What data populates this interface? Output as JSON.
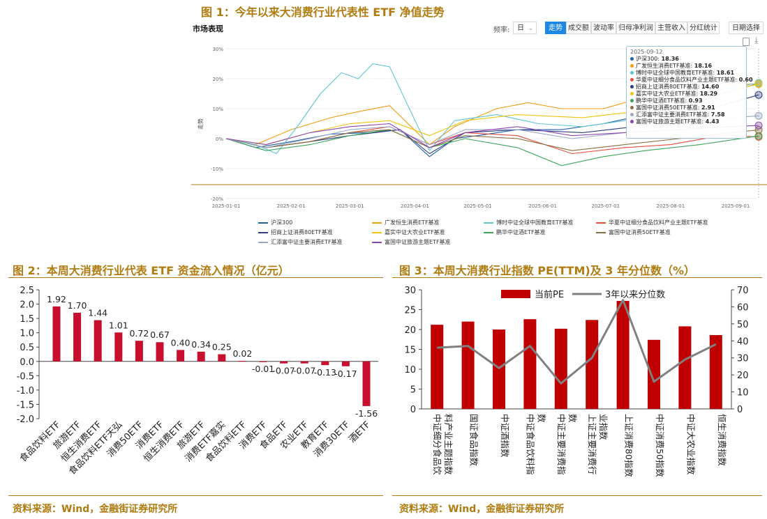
{
  "figure1": {
    "title": "图 1：今年以来大消费行业代表性 ETF 净值走势",
    "panel_title": "市场表现",
    "freq_label": "频率:",
    "freq_value": "日",
    "tabs": [
      "走势",
      "成交额",
      "波动率",
      "归母净利润",
      "主营收入",
      "分红统计"
    ],
    "active_tab": "走势",
    "date_button": "日期选择",
    "ylabel": "走势",
    "tooltip_date": "2025-09-12",
    "chart_data": {
      "type": "line",
      "x_ticks": [
        "2025-01-01",
        "2025-02-01",
        "2025-03-01",
        "2025-04-01",
        "2025-05-01",
        "2025-06-01",
        "2025-07-01",
        "2025-08-01",
        "2025-09-01"
      ],
      "y_ticks": [
        "30%",
        "20%",
        "10%",
        "0%",
        "-10%",
        "-20%"
      ],
      "ylim": [
        -20,
        30
      ],
      "x_start": "2025-01-01",
      "x_end": "2025-09-12",
      "series": [
        {
          "name": "沪深300",
          "color": "#1f5fa8",
          "tooltip": "18.36",
          "points": [
            [
              "2025-01-01",
              0
            ],
            [
              "2025-01-15",
              -3
            ],
            [
              "2025-02-01",
              -1
            ],
            [
              "2025-02-20",
              1.5
            ],
            [
              "2025-03-10",
              2
            ],
            [
              "2025-03-25",
              3
            ],
            [
              "2025-04-08",
              -6
            ],
            [
              "2025-04-20",
              0
            ],
            [
              "2025-05-01",
              1
            ],
            [
              "2025-05-20",
              3
            ],
            [
              "2025-06-10",
              3
            ],
            [
              "2025-06-30",
              5
            ],
            [
              "2025-07-20",
              8
            ],
            [
              "2025-08-10",
              11
            ],
            [
              "2025-08-25",
              15
            ],
            [
              "2025-09-12",
              18.4
            ]
          ]
        },
        {
          "name": "广发恒生消费ETF基准",
          "color": "#f39c12",
          "tooltip": "18.16",
          "points": [
            [
              "2025-01-01",
              0
            ],
            [
              "2025-01-15",
              -2
            ],
            [
              "2025-02-01",
              3
            ],
            [
              "2025-02-20",
              7
            ],
            [
              "2025-03-05",
              9
            ],
            [
              "2025-03-20",
              11
            ],
            [
              "2025-04-08",
              -2
            ],
            [
              "2025-04-20",
              4
            ],
            [
              "2025-05-10",
              10
            ],
            [
              "2025-05-25",
              12
            ],
            [
              "2025-06-10",
              10
            ],
            [
              "2025-06-30",
              10
            ],
            [
              "2025-07-20",
              14
            ],
            [
              "2025-08-10",
              16
            ],
            [
              "2025-08-25",
              18
            ],
            [
              "2025-09-12",
              18.2
            ]
          ]
        },
        {
          "name": "博时中证全球中国教育ETF基准",
          "color": "#5ec5d6",
          "tooltip": "18.61",
          "points": [
            [
              "2025-01-01",
              0
            ],
            [
              "2025-01-15",
              -2
            ],
            [
              "2025-01-25",
              -5
            ],
            [
              "2025-02-05",
              5
            ],
            [
              "2025-02-15",
              15
            ],
            [
              "2025-02-25",
              22
            ],
            [
              "2025-03-05",
              20
            ],
            [
              "2025-03-12",
              25
            ],
            [
              "2025-03-20",
              24
            ],
            [
              "2025-03-28",
              12
            ],
            [
              "2025-04-08",
              -4
            ],
            [
              "2025-04-20",
              6
            ],
            [
              "2025-05-10",
              8
            ],
            [
              "2025-05-30",
              5
            ],
            [
              "2025-06-20",
              4
            ],
            [
              "2025-07-10",
              6
            ],
            [
              "2025-07-30",
              12
            ],
            [
              "2025-08-15",
              15
            ],
            [
              "2025-09-12",
              18.6
            ]
          ]
        },
        {
          "name": "华夏中证细分食品饮料产业主题ETF基准",
          "color": "#e74c3c",
          "tooltip": "0.60",
          "points": [
            [
              "2025-01-01",
              0
            ],
            [
              "2025-01-20",
              -3
            ],
            [
              "2025-02-10",
              -1
            ],
            [
              "2025-03-01",
              2
            ],
            [
              "2025-03-20",
              4
            ],
            [
              "2025-04-08",
              -2
            ],
            [
              "2025-04-25",
              2
            ],
            [
              "2025-05-20",
              1
            ],
            [
              "2025-06-15",
              -5
            ],
            [
              "2025-07-10",
              -3
            ],
            [
              "2025-08-01",
              -2
            ],
            [
              "2025-08-25",
              1
            ],
            [
              "2025-09-12",
              0.6
            ]
          ]
        },
        {
          "name": "招商上证消费80ETF基准",
          "color": "#2c3e80",
          "tooltip": "14.60",
          "points": [
            [
              "2025-01-01",
              0
            ],
            [
              "2025-01-20",
              -3
            ],
            [
              "2025-02-10",
              -1
            ],
            [
              "2025-03-01",
              1
            ],
            [
              "2025-03-25",
              3
            ],
            [
              "2025-04-08",
              -5
            ],
            [
              "2025-04-25",
              2
            ],
            [
              "2025-05-20",
              3
            ],
            [
              "2025-06-20",
              2
            ],
            [
              "2025-07-15",
              4
            ],
            [
              "2025-08-10",
              8
            ],
            [
              "2025-08-30",
              12
            ],
            [
              "2025-09-12",
              14.6
            ]
          ]
        },
        {
          "name": "嘉实中证大农业ETF基准",
          "color": "#f1c40f",
          "tooltip": "18.29",
          "points": [
            [
              "2025-01-01",
              0
            ],
            [
              "2025-01-20",
              -2
            ],
            [
              "2025-02-10",
              2
            ],
            [
              "2025-03-01",
              5
            ],
            [
              "2025-03-20",
              6
            ],
            [
              "2025-04-08",
              1
            ],
            [
              "2025-04-25",
              6
            ],
            [
              "2025-05-20",
              8
            ],
            [
              "2025-06-20",
              7
            ],
            [
              "2025-07-15",
              9
            ],
            [
              "2025-08-10",
              13
            ],
            [
              "2025-08-30",
              16
            ],
            [
              "2025-09-12",
              18.3
            ]
          ]
        },
        {
          "name": "鹏华中证酒ETF基准",
          "color": "#3aa65a",
          "tooltip": "0.93",
          "points": [
            [
              "2025-01-01",
              0
            ],
            [
              "2025-01-20",
              -4
            ],
            [
              "2025-02-10",
              -2
            ],
            [
              "2025-03-01",
              1
            ],
            [
              "2025-03-20",
              3
            ],
            [
              "2025-04-08",
              -3
            ],
            [
              "2025-04-25",
              0
            ],
            [
              "2025-05-20",
              -3
            ],
            [
              "2025-06-10",
              -9
            ],
            [
              "2025-06-30",
              -6
            ],
            [
              "2025-07-20",
              -4
            ],
            [
              "2025-08-15",
              -2
            ],
            [
              "2025-09-12",
              0.9
            ]
          ]
        },
        {
          "name": "富国中证消费50ETF基准",
          "color": "#8a6d3b",
          "tooltip": "2.91",
          "points": [
            [
              "2025-01-01",
              0
            ],
            [
              "2025-01-20",
              -3
            ],
            [
              "2025-02-10",
              -1
            ],
            [
              "2025-03-01",
              2
            ],
            [
              "2025-03-20",
              3
            ],
            [
              "2025-04-08",
              -3
            ],
            [
              "2025-04-25",
              1
            ],
            [
              "2025-05-20",
              0
            ],
            [
              "2025-06-15",
              -4
            ],
            [
              "2025-07-10",
              -2
            ],
            [
              "2025-08-05",
              0
            ],
            [
              "2025-08-30",
              2
            ],
            [
              "2025-09-12",
              2.9
            ]
          ]
        },
        {
          "name": "汇添富中证主要消费ETF基准",
          "color": "#9aa7c7",
          "tooltip": "7.58",
          "points": [
            [
              "2025-01-01",
              0
            ],
            [
              "2025-01-20",
              -3
            ],
            [
              "2025-02-10",
              0
            ],
            [
              "2025-03-01",
              3
            ],
            [
              "2025-03-20",
              4
            ],
            [
              "2025-04-08",
              -2
            ],
            [
              "2025-04-25",
              3
            ],
            [
              "2025-05-20",
              3
            ],
            [
              "2025-06-15",
              0
            ],
            [
              "2025-07-10",
              2
            ],
            [
              "2025-08-05",
              5
            ],
            [
              "2025-08-30",
              7
            ],
            [
              "2025-09-12",
              7.6
            ]
          ]
        },
        {
          "name": "富国中证旅游主题ETF基准",
          "color": "#8e44ad",
          "tooltip": "4.43",
          "points": [
            [
              "2025-01-01",
              0
            ],
            [
              "2025-01-20",
              -2
            ],
            [
              "2025-02-10",
              2
            ],
            [
              "2025-03-01",
              4
            ],
            [
              "2025-03-20",
              5
            ],
            [
              "2025-04-08",
              -3
            ],
            [
              "2025-04-25",
              2
            ],
            [
              "2025-05-20",
              4
            ],
            [
              "2025-06-15",
              1
            ],
            [
              "2025-07-10",
              2
            ],
            [
              "2025-08-05",
              3
            ],
            [
              "2025-08-30",
              4
            ],
            [
              "2025-09-12",
              4.4
            ]
          ]
        }
      ]
    }
  },
  "figure2": {
    "title": "图 2：本周大消费行业代表 ETF 资金流入情况（亿元）",
    "source": "资料来源：Wind，金融街证券研究所",
    "chart_data": {
      "type": "bar",
      "categories": [
        "食品饮料ETF",
        "旅游ETF",
        "恒生消费ETF",
        "食品饮料ETF天弘",
        "消费50ETF",
        "消费ETF",
        "恒生消费ETF",
        "旅游ETF",
        "消费ETF嘉实",
        "食品饮料ETF",
        "消费ETF",
        "食品ETF",
        "农业ETF",
        "教育ETF",
        "消费30ETF",
        "酒ETF"
      ],
      "values": [
        1.92,
        1.7,
        1.44,
        1.01,
        0.72,
        0.67,
        0.4,
        0.34,
        0.25,
        0.02,
        -0.01,
        -0.07,
        -0.07,
        -0.13,
        -0.17,
        -1.56
      ],
      "value_labels": [
        "1.92",
        "1.70",
        "1.44",
        "1.01",
        "0.72",
        "0.67",
        "0.40",
        "0.34",
        "0.25",
        "0.02",
        "-0.01",
        "-0.07",
        "-0.07",
        "-0.13",
        "-0.17",
        "-1.56"
      ],
      "y_ticks": [
        "2.5",
        "2.0",
        "1.5",
        "1.0",
        "0.5",
        "0.0",
        "-0.5",
        "-1.0",
        "-1.5",
        "-2.0"
      ],
      "ylim": [
        -2.0,
        2.5
      ],
      "bar_color": "#c8102e"
    }
  },
  "figure3": {
    "title": "图 3：本周大消费行业指数 PE(TTM)及 3 年分位数（%）",
    "source": "资料来源：Wind，金融街证券研究所",
    "chart_data": {
      "type": "bar",
      "categories": [
        "中证细分食品饮料产业主题指数",
        "国证食品指数",
        "中证酒指数",
        "中证食品饮料指数",
        "中证主要消费指数",
        "上证主要消费行业指数",
        "上证消费80指数",
        "中证消费50指数",
        "中证大农业指数",
        "恒生消费指数"
      ],
      "category_lines": [
        [
          "中证细分食品饮",
          "料产业主题指数"
        ],
        [
          "国证食品指数"
        ],
        [
          "中证酒指数"
        ],
        [
          "中证食品饮料指",
          "数"
        ],
        [
          "中证主要消费指",
          "数"
        ],
        [
          "上证主要消费行",
          "业指数"
        ],
        [
          "上证消费80指数"
        ],
        [
          "中证消费50指数"
        ],
        [
          "中证大农业指数"
        ],
        [
          "恒生消费指数"
        ]
      ],
      "series": [
        {
          "name": "当前PE",
          "type": "bar",
          "axis": "left",
          "color": "#c00000",
          "values": [
            21.2,
            22.0,
            20.0,
            22.6,
            20.2,
            22.4,
            27.2,
            17.4,
            20.8,
            18.6
          ]
        },
        {
          "name": "3年以来分位数",
          "type": "line",
          "axis": "right",
          "color": "#808080",
          "values": [
            36,
            37,
            24,
            37,
            15,
            30,
            64,
            16,
            29,
            38
          ]
        }
      ],
      "y_left_ticks": [
        "30",
        "25",
        "20",
        "15",
        "10",
        "5",
        "0"
      ],
      "y_right_ticks": [
        "70",
        "60",
        "50",
        "40",
        "30",
        "20",
        "10",
        "0"
      ],
      "ylim_left": [
        0,
        30
      ],
      "ylim_right": [
        0,
        70
      ]
    }
  }
}
